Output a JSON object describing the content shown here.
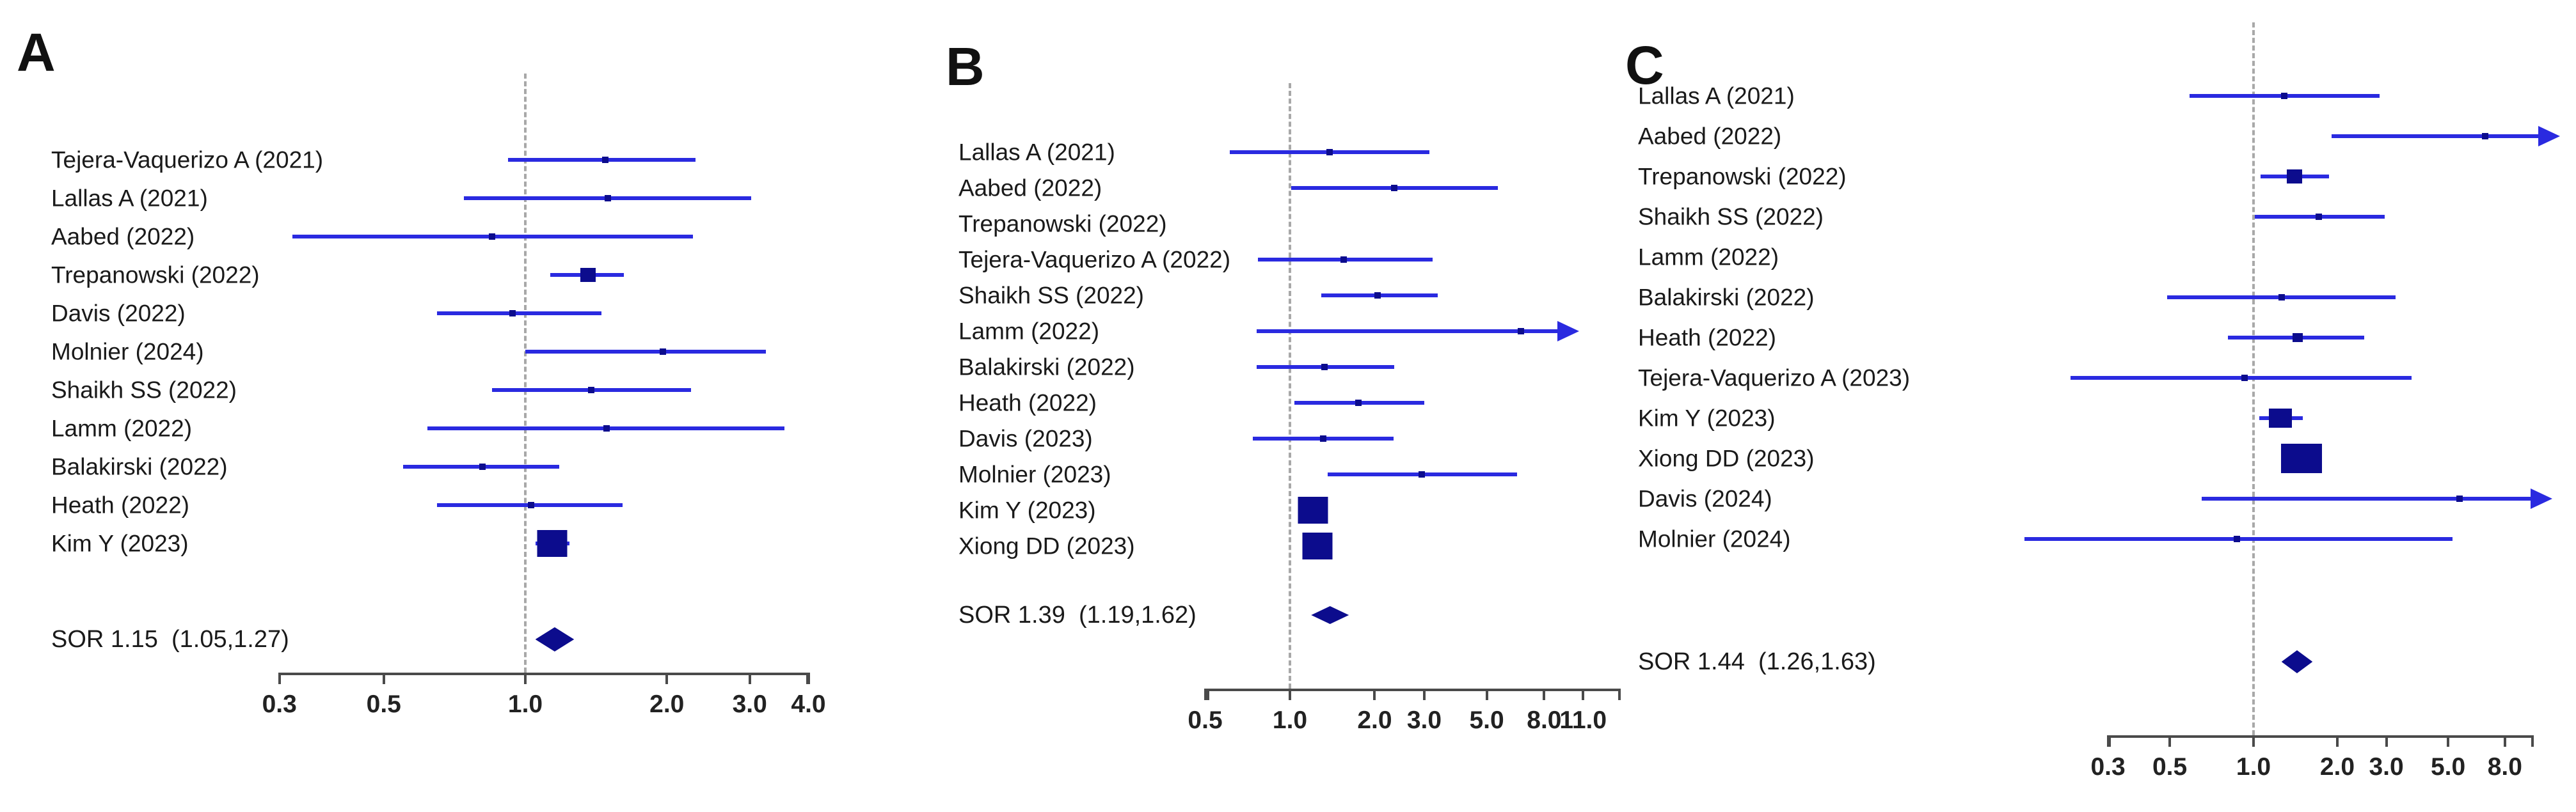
{
  "chart_data": {
    "type": "forest",
    "description": "Three-panel forest plot of study odds ratios (log scale) with summary odds ratio (SOR) diamonds",
    "scale": "log10",
    "ref_value": 1.0,
    "panels": [
      {
        "id": "A",
        "label": "A",
        "x_ticks": [
          0.3,
          0.5,
          1.0,
          2.0,
          3.0,
          4.0
        ],
        "x_tick_labels": [
          "0.3",
          "0.5",
          "1.0",
          "2.0",
          "3.0",
          "4.0"
        ],
        "studies": [
          {
            "label": "Tejera-Vaquerizo A (2021)",
            "estimate": 1.48,
            "ci_low": 0.92,
            "ci_high": 2.3,
            "marker": "dot"
          },
          {
            "label": "Lallas A (2021)",
            "estimate": 1.5,
            "ci_low": 0.74,
            "ci_high": 3.02,
            "marker": "dot"
          },
          {
            "label": "Aabed (2022)",
            "estimate": 0.85,
            "ci_low": 0.32,
            "ci_high": 2.27,
            "marker": "dot"
          },
          {
            "label": "Trepanowski (2022)",
            "estimate": 1.36,
            "ci_low": 1.13,
            "ci_high": 1.62,
            "marker": "square-sm"
          },
          {
            "label": "Davis (2022)",
            "estimate": 0.94,
            "ci_low": 0.65,
            "ci_high": 1.45,
            "marker": "dot"
          },
          {
            "label": "Molnier (2024)",
            "estimate": 1.96,
            "ci_low": 1.0,
            "ci_high": 3.25,
            "marker": "dot"
          },
          {
            "label": "Shaikh SS (2022)",
            "estimate": 1.38,
            "ci_low": 0.85,
            "ci_high": 2.25,
            "marker": "dot"
          },
          {
            "label": "Lamm (2022)",
            "estimate": 1.49,
            "ci_low": 0.62,
            "ci_high": 3.56,
            "marker": "dot"
          },
          {
            "label": "Balakirski (2022)",
            "estimate": 0.81,
            "ci_low": 0.55,
            "ci_high": 1.18,
            "marker": "dot"
          },
          {
            "label": "Heath (2022)",
            "estimate": 1.03,
            "ci_low": 0.65,
            "ci_high": 1.61,
            "marker": "dot"
          },
          {
            "label": "Kim Y (2023)",
            "estimate": 1.14,
            "ci_low": 1.05,
            "ci_high": 1.24,
            "marker": "square-lg"
          }
        ],
        "summary": {
          "label": "SOR 1.15  (1.05,1.27)",
          "estimate": 1.15,
          "ci_low": 1.05,
          "ci_high": 1.27
        }
      },
      {
        "id": "B",
        "label": "B",
        "x_ticks": [
          0.5,
          1.0,
          2.0,
          3.0,
          5.0,
          8.0,
          11.0
        ],
        "x_tick_labels": [
          "0.5",
          "1.0",
          "2.0",
          "3.0",
          "5.0",
          "8.0",
          "11.0"
        ],
        "studies": [
          {
            "label": "Lallas A (2021)",
            "estimate": 1.38,
            "ci_low": 0.61,
            "ci_high": 3.13,
            "marker": "dot"
          },
          {
            "label": "Aabed (2022)",
            "estimate": 2.35,
            "ci_low": 1.01,
            "ci_high": 5.47,
            "marker": "dot"
          },
          {
            "label": "Trepanowski (2022)",
            "estimate": null,
            "ci_low": null,
            "ci_high": null,
            "marker": "none"
          },
          {
            "label": "Tejera-Vaquerizo A (2022)",
            "estimate": 1.55,
            "ci_low": 0.77,
            "ci_high": 3.21,
            "marker": "dot"
          },
          {
            "label": "Shaikh SS (2022)",
            "estimate": 2.05,
            "ci_low": 1.29,
            "ci_high": 3.35,
            "marker": "dot"
          },
          {
            "label": "Lamm (2022)",
            "estimate": 6.6,
            "ci_low": 0.76,
            "ci_high": null,
            "marker": "dot",
            "arrow": true,
            "arrow_tip": 10.3
          },
          {
            "label": "Balakirski (2022)",
            "estimate": 1.33,
            "ci_low": 0.76,
            "ci_high": 2.35,
            "marker": "dot"
          },
          {
            "label": "Heath (2022)",
            "estimate": 1.75,
            "ci_low": 1.04,
            "ci_high": 3.0,
            "marker": "dot"
          },
          {
            "label": "Davis (2023)",
            "estimate": 1.31,
            "ci_low": 0.74,
            "ci_high": 2.33,
            "marker": "dot"
          },
          {
            "label": "Molnier (2023)",
            "estimate": 2.94,
            "ci_low": 1.36,
            "ci_high": 6.4,
            "marker": "dot"
          },
          {
            "label": "Kim Y (2023)",
            "estimate": 1.21,
            "ci_low": 1.09,
            "ci_high": 1.35,
            "marker": "square-lg"
          },
          {
            "label": "Xiong DD (2023)",
            "estimate": 1.25,
            "ci_low": 1.12,
            "ci_high": 1.4,
            "marker": "square-lg"
          }
        ],
        "summary": {
          "label": "SOR 1.39  (1.19,1.62)",
          "estimate": 1.39,
          "ci_low": 1.19,
          "ci_high": 1.62
        }
      },
      {
        "id": "C",
        "label": "C",
        "x_ticks": [
          0.3,
          0.5,
          1.0,
          2.0,
          3.0,
          5.0,
          8.0
        ],
        "x_tick_labels": [
          "0.3",
          "0.5",
          "1.0",
          "2.0",
          "3.0",
          "5.0",
          "8.0"
        ],
        "studies": [
          {
            "label": "Lallas A (2021)",
            "estimate": 1.29,
            "ci_low": 0.59,
            "ci_high": 2.84,
            "marker": "dot"
          },
          {
            "label": "Aabed (2022)",
            "estimate": 6.8,
            "ci_low": 1.91,
            "ci_high": null,
            "marker": "dot",
            "arrow": true,
            "arrow_tip": 12.2
          },
          {
            "label": "Trepanowski (2022)",
            "estimate": 1.4,
            "ci_low": 1.06,
            "ci_high": 1.87,
            "marker": "square-sm"
          },
          {
            "label": "Shaikh SS (2022)",
            "estimate": 1.72,
            "ci_low": 1.01,
            "ci_high": 2.96,
            "marker": "dot"
          },
          {
            "label": "Lamm (2022)",
            "estimate": null,
            "ci_low": null,
            "ci_high": null,
            "marker": "none"
          },
          {
            "label": "Balakirski (2022)",
            "estimate": 1.26,
            "ci_low": 0.49,
            "ci_high": 3.23,
            "marker": "dot"
          },
          {
            "label": "Heath (2022)",
            "estimate": 1.44,
            "ci_low": 0.81,
            "ci_high": 2.5,
            "marker": "square-xs"
          },
          {
            "label": "Tejera-Vaquerizo A (2023)",
            "estimate": 0.93,
            "ci_low": 0.22,
            "ci_high": 3.7,
            "marker": "dot"
          },
          {
            "label": "Kim Y (2023)",
            "estimate": 1.25,
            "ci_low": 1.05,
            "ci_high": 1.5,
            "marker": "square-md"
          },
          {
            "label": "Xiong DD (2023)",
            "estimate": 1.49,
            "ci_low": 1.27,
            "ci_high": 1.76,
            "marker": "square-xl"
          },
          {
            "label": "Davis (2024)",
            "estimate": 5.5,
            "ci_low": 0.65,
            "ci_high": null,
            "marker": "dot",
            "arrow": true,
            "arrow_tip": 11.5
          },
          {
            "label": "Molnier (2024)",
            "estimate": 0.87,
            "ci_low": 0.15,
            "ci_high": 5.2,
            "marker": "dot"
          }
        ],
        "summary": {
          "label": "SOR 1.44  (1.26,1.63)",
          "estimate": 1.44,
          "ci_low": 1.26,
          "ci_high": 1.63
        }
      }
    ]
  },
  "colors": {
    "ci_line": "#2a2ae0",
    "marker": "#0c0c8d",
    "ref_line": "#a8a8a8",
    "axis": "#4a4a4a",
    "text": "#1a1a1a"
  }
}
